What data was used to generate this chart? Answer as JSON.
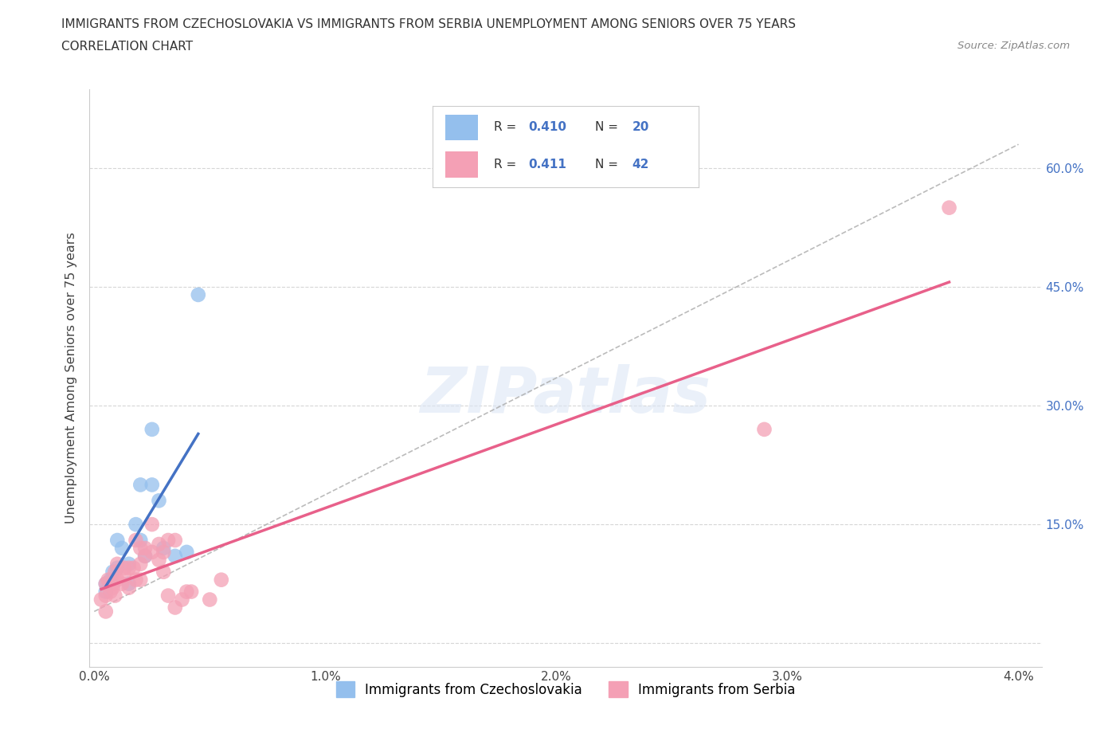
{
  "title_line1": "IMMIGRANTS FROM CZECHOSLOVAKIA VS IMMIGRANTS FROM SERBIA UNEMPLOYMENT AMONG SENIORS OVER 75 YEARS",
  "title_line2": "CORRELATION CHART",
  "source": "Source: ZipAtlas.com",
  "ylabel": "Unemployment Among Seniors over 75 years",
  "xlim": [
    -0.0002,
    0.041
  ],
  "ylim": [
    -0.03,
    0.7
  ],
  "yticks": [
    0.0,
    0.15,
    0.3,
    0.45,
    0.6
  ],
  "xticks": [
    0.0,
    0.01,
    0.02,
    0.03,
    0.04
  ],
  "xtick_labels": [
    "0.0%",
    "1.0%",
    "2.0%",
    "3.0%",
    "4.0%"
  ],
  "ytick_labels_right": [
    "15.0%",
    "30.0%",
    "45.0%",
    "60.0%"
  ],
  "color_czech": "#94BFED",
  "color_serbia": "#F4A0B5",
  "trend_color_czech": "#4472C4",
  "trend_color_serbia": "#E8608A",
  "dot_size": 180,
  "watermark": "ZIPatlas",
  "czech_x": [
    0.0005,
    0.0005,
    0.0007,
    0.0008,
    0.001,
    0.001,
    0.0012,
    0.0015,
    0.0015,
    0.0018,
    0.002,
    0.002,
    0.0022,
    0.0025,
    0.0025,
    0.0028,
    0.003,
    0.0035,
    0.004,
    0.0045
  ],
  "czech_y": [
    0.065,
    0.075,
    0.08,
    0.09,
    0.095,
    0.13,
    0.12,
    0.075,
    0.1,
    0.15,
    0.13,
    0.2,
    0.11,
    0.2,
    0.27,
    0.18,
    0.12,
    0.11,
    0.115,
    0.44
  ],
  "serbia_x": [
    0.0003,
    0.0005,
    0.0005,
    0.0005,
    0.0006,
    0.0007,
    0.0008,
    0.0008,
    0.0009,
    0.0009,
    0.001,
    0.001,
    0.0012,
    0.0013,
    0.0013,
    0.0015,
    0.0015,
    0.0017,
    0.0018,
    0.0018,
    0.002,
    0.002,
    0.002,
    0.0022,
    0.0022,
    0.0025,
    0.0025,
    0.0028,
    0.0028,
    0.003,
    0.003,
    0.0032,
    0.0032,
    0.0035,
    0.0035,
    0.0038,
    0.004,
    0.0042,
    0.005,
    0.0055,
    0.029,
    0.037
  ],
  "serbia_y": [
    0.055,
    0.06,
    0.04,
    0.075,
    0.08,
    0.065,
    0.07,
    0.075,
    0.09,
    0.06,
    0.1,
    0.08,
    0.075,
    0.085,
    0.095,
    0.095,
    0.07,
    0.095,
    0.08,
    0.13,
    0.08,
    0.12,
    0.1,
    0.12,
    0.11,
    0.115,
    0.15,
    0.105,
    0.125,
    0.115,
    0.09,
    0.13,
    0.06,
    0.045,
    0.13,
    0.055,
    0.065,
    0.065,
    0.055,
    0.08,
    0.27,
    0.55
  ],
  "legend_r1_label": "R = 0.410",
  "legend_n1_label": "N = 20",
  "legend_r2_label": "R =  0.411",
  "legend_n2_label": "N = 42"
}
